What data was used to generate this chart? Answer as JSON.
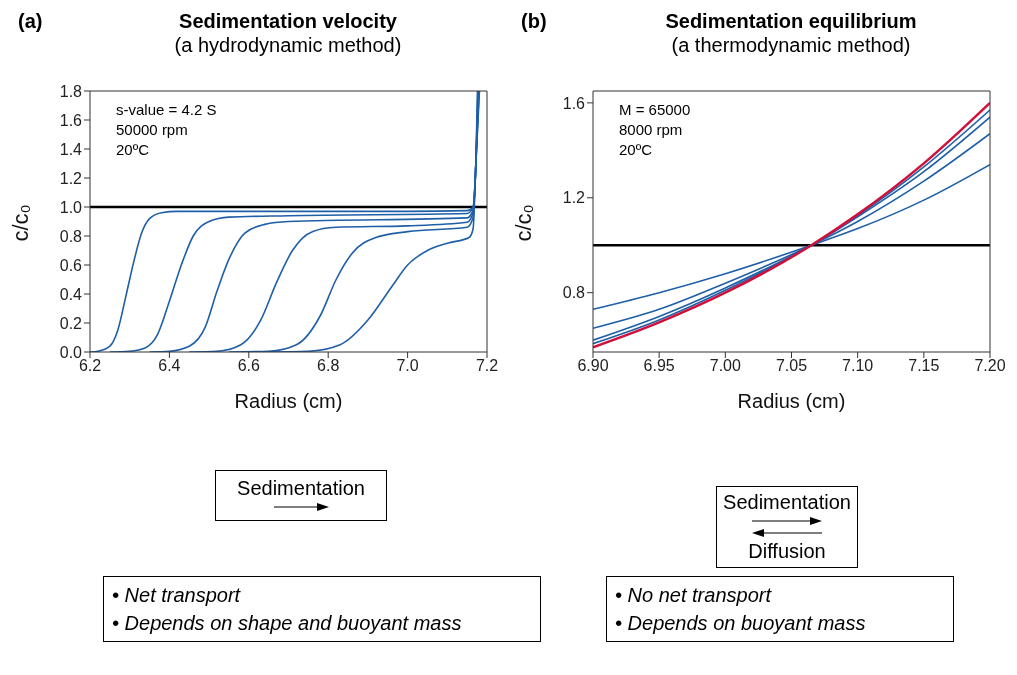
{
  "chart_data": [
    {
      "type": "line",
      "title": "Sedimentation velocity",
      "subtitle": "(a hydrodynamic method)",
      "xlabel": "Radius (cm)",
      "ylabel": "c/c₀",
      "annotations": [
        "(a)",
        "s-value = 4.2 S",
        "50000 rpm",
        "20ºC",
        "Sedimentation",
        "• Net transport",
        "• Depends on shape and buoyant mass"
      ],
      "xlim": [
        6.2,
        7.2
      ],
      "ylim": [
        0,
        1.8
      ],
      "xticks": [
        6.2,
        6.4,
        6.6,
        6.8,
        {
          "value": 7.0,
          "label": "7.0"
        },
        {
          "value": 7.2,
          "label": "7.2"
        }
      ],
      "yticks": [
        {
          "value": 0,
          "label": "0.0"
        },
        0.2,
        0.4,
        0.6,
        0.8,
        {
          "value": 1,
          "label": "1.0"
        },
        1.2,
        1.4,
        1.6,
        1.8
      ],
      "ref_lines": [
        {
          "axis": "y",
          "value": 1,
          "color": "#000000"
        }
      ],
      "grid": false,
      "legend": false,
      "marker": "none",
      "line_style": "solid",
      "series": [
        {
          "color": "#1f5fa8",
          "x": [
            6.2,
            6.22,
            6.25,
            6.27,
            6.29,
            6.31,
            6.33,
            6.35,
            6.38,
            6.42,
            7.0,
            7.15,
            7.165,
            7.172,
            7.176
          ],
          "values": [
            0,
            0.005,
            0.04,
            0.15,
            0.38,
            0.62,
            0.82,
            0.92,
            0.96,
            0.97,
            0.97,
            0.975,
            1.0,
            1.3,
            1.8
          ]
        },
        {
          "color": "#1f5fa8",
          "x": [
            6.25,
            6.3,
            6.34,
            6.37,
            6.4,
            6.43,
            6.46,
            6.5,
            6.55,
            6.7,
            7.15,
            7.165,
            7.172,
            7.177
          ],
          "values": [
            0,
            0.005,
            0.03,
            0.12,
            0.35,
            0.6,
            0.8,
            0.9,
            0.93,
            0.94,
            0.955,
            1.0,
            1.3,
            1.8
          ]
        },
        {
          "color": "#1f5fa8",
          "x": [
            6.35,
            6.4,
            6.45,
            6.49,
            6.52,
            6.55,
            6.59,
            6.64,
            6.7,
            7.15,
            7.165,
            7.172,
            7.178
          ],
          "values": [
            0,
            0.005,
            0.04,
            0.17,
            0.42,
            0.64,
            0.82,
            0.88,
            0.9,
            0.925,
            0.98,
            1.3,
            1.8
          ]
        },
        {
          "color": "#1f5fa8",
          "x": [
            6.45,
            6.52,
            6.58,
            6.63,
            6.67,
            6.71,
            6.76,
            6.82,
            7.0,
            7.15,
            7.165,
            7.172,
            7.179
          ],
          "values": [
            0,
            0.005,
            0.05,
            0.22,
            0.48,
            0.7,
            0.83,
            0.86,
            0.87,
            0.895,
            0.96,
            1.3,
            1.8
          ]
        },
        {
          "color": "#1f5fa8",
          "x": [
            6.55,
            6.65,
            6.72,
            6.78,
            6.82,
            6.86,
            6.92,
            7.0,
            7.15,
            7.165,
            7.172,
            7.18
          ],
          "values": [
            0,
            0.005,
            0.05,
            0.25,
            0.5,
            0.68,
            0.79,
            0.83,
            0.86,
            0.93,
            1.3,
            1.8
          ]
        },
        {
          "color": "#1f5fa8",
          "x": [
            6.65,
            6.75,
            6.83,
            6.9,
            6.96,
            7.0,
            7.05,
            7.1,
            7.155,
            7.165,
            7.172,
            7.181
          ],
          "values": [
            0,
            0.005,
            0.05,
            0.22,
            0.45,
            0.6,
            0.7,
            0.75,
            0.79,
            0.85,
            1.3,
            1.8
          ]
        }
      ]
    },
    {
      "type": "line",
      "title": "Sedimentation equilibrium",
      "subtitle": "(a thermodynamic method)",
      "xlabel": "Radius (cm)",
      "ylabel": "c/c₀",
      "annotations": [
        "(b)",
        "M = 65000",
        "8000 rpm",
        "20ºC",
        "Sedimentation",
        "Diffusion",
        "• No net transport",
        "• Depends on buoyant mass"
      ],
      "xlim": [
        6.9,
        7.2
      ],
      "ylim": [
        0.55,
        1.65
      ],
      "xticks": [
        {
          "value": 6.9,
          "label": "6.90"
        },
        6.95,
        {
          "value": 7.0,
          "label": "7.00"
        },
        7.05,
        {
          "value": 7.1,
          "label": "7.10"
        },
        7.15,
        {
          "value": 7.2,
          "label": "7.20"
        }
      ],
      "yticks": [
        0.8,
        1.2,
        1.6
      ],
      "ref_lines": [
        {
          "axis": "y",
          "value": 1,
          "color": "#000000"
        }
      ],
      "grid": false,
      "legend": false,
      "marker": "none",
      "line_style": "solid",
      "series": [
        {
          "color": "#1f5fa8",
          "x": [
            6.9,
            6.95,
            7.0,
            7.065,
            7.1,
            7.15,
            7.2
          ],
          "values": [
            0.73,
            0.8,
            0.88,
            1.0,
            1.07,
            1.19,
            1.34
          ]
        },
        {
          "color": "#1f5fa8",
          "x": [
            6.9,
            6.95,
            7.0,
            7.065,
            7.1,
            7.15,
            7.2
          ],
          "values": [
            0.65,
            0.73,
            0.84,
            1.0,
            1.1,
            1.27,
            1.47
          ]
        },
        {
          "color": "#1f5fa8",
          "x": [
            6.9,
            6.95,
            7.0,
            7.065,
            7.1,
            7.15,
            7.2
          ],
          "values": [
            0.6,
            0.7,
            0.82,
            1.0,
            1.12,
            1.31,
            1.54
          ]
        },
        {
          "color": "#1f5fa8",
          "x": [
            6.9,
            6.95,
            7.0,
            7.065,
            7.1,
            7.15,
            7.2
          ],
          "values": [
            0.585,
            0.685,
            0.81,
            1.0,
            1.125,
            1.33,
            1.57
          ]
        },
        {
          "color": "#d0103a",
          "x": [
            6.9,
            6.95,
            7.0,
            7.065,
            7.1,
            7.15,
            7.2
          ],
          "values": [
            0.57,
            0.675,
            0.8,
            1.0,
            1.13,
            1.345,
            1.6
          ]
        }
      ]
    }
  ]
}
